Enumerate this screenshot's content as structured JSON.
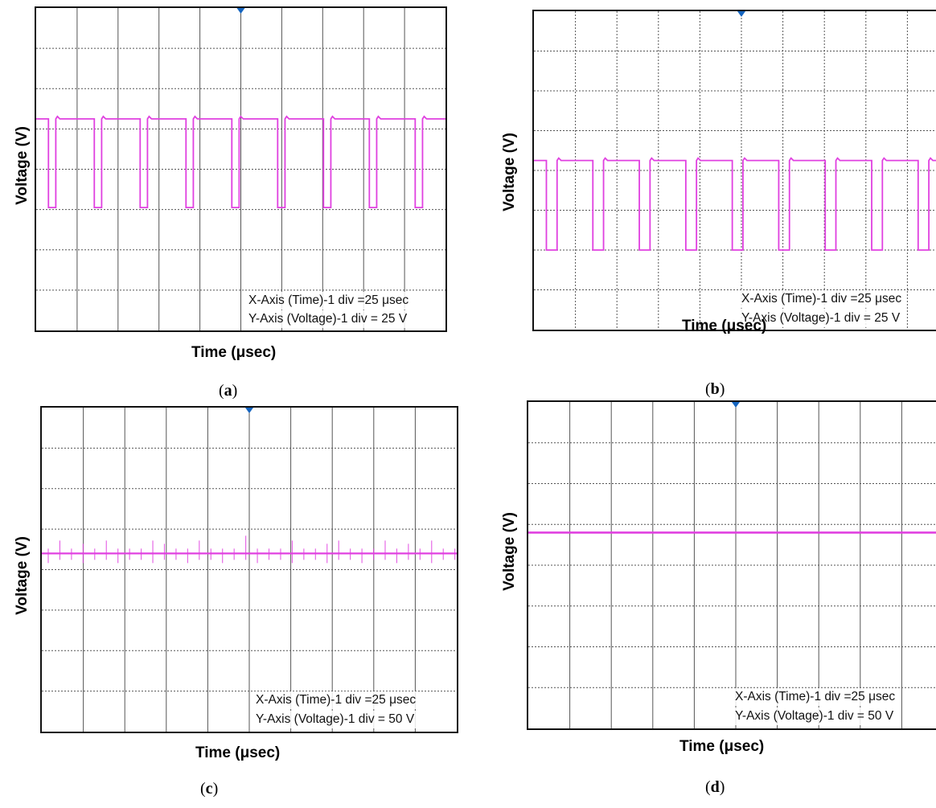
{
  "chart_data": [
    {
      "type": "line",
      "panel": "(a)",
      "caption_letter": "a",
      "xlabel": "Time (μsec)",
      "ylabel": "Voltage (V)",
      "annotations": [
        "X-Axis (Time)-1 div =25 μsec",
        "Y-Axis (Voltage)-1 div = 25 V"
      ],
      "grid": true,
      "divisions": {
        "x": 10,
        "y": 8
      },
      "waveform": "square",
      "series": [
        {
          "color": "#e040e0",
          "high_div": 5.25,
          "low_div": 3.05,
          "period_div": 1.12,
          "low_fraction": 0.16,
          "phase_div": 0.3
        }
      ]
    },
    {
      "type": "line",
      "panel": "(b)",
      "caption_letter": "b",
      "xlabel": "Time (μsec)",
      "ylabel": "Voltage (V)",
      "annotations": [
        "X-Axis (Time)-1 div =25 μsec",
        "Y-Axis (Voltage)-1 div = 25 V"
      ],
      "grid": true,
      "divisions": {
        "x": 10,
        "y": 8
      },
      "waveform": "square",
      "series": [
        {
          "color": "#e040e0",
          "high_div": 4.25,
          "low_div": 2.0,
          "period_div": 1.12,
          "low_fraction": 0.23,
          "phase_div": 0.3
        }
      ]
    },
    {
      "type": "line",
      "panel": "(c)",
      "caption_letter": "c",
      "xlabel": "Time (μsec)",
      "ylabel": "Voltage (V)",
      "annotations": [
        "X-Axis (Time)-1 div =25 μsec",
        "Y-Axis (Voltage)-1 div = 50 V"
      ],
      "grid": true,
      "divisions": {
        "x": 10,
        "y": 8
      },
      "waveform": "dc-ripple",
      "series": [
        {
          "color": "#e040e0",
          "level_div": 4.4,
          "spike_spacing_div": 0.28
        }
      ]
    },
    {
      "type": "line",
      "panel": "(d)",
      "caption_letter": "d",
      "xlabel": "Time (μsec)",
      "ylabel": "Voltage (V)",
      "annotations": [
        "X-Axis (Time)-1 div =25 μsec",
        "Y-Axis (Voltage)-1 div = 50 V"
      ],
      "grid": true,
      "divisions": {
        "x": 10,
        "y": 8
      },
      "waveform": "dc",
      "series": [
        {
          "color": "#e040e0",
          "level_div": 4.8
        }
      ]
    }
  ]
}
